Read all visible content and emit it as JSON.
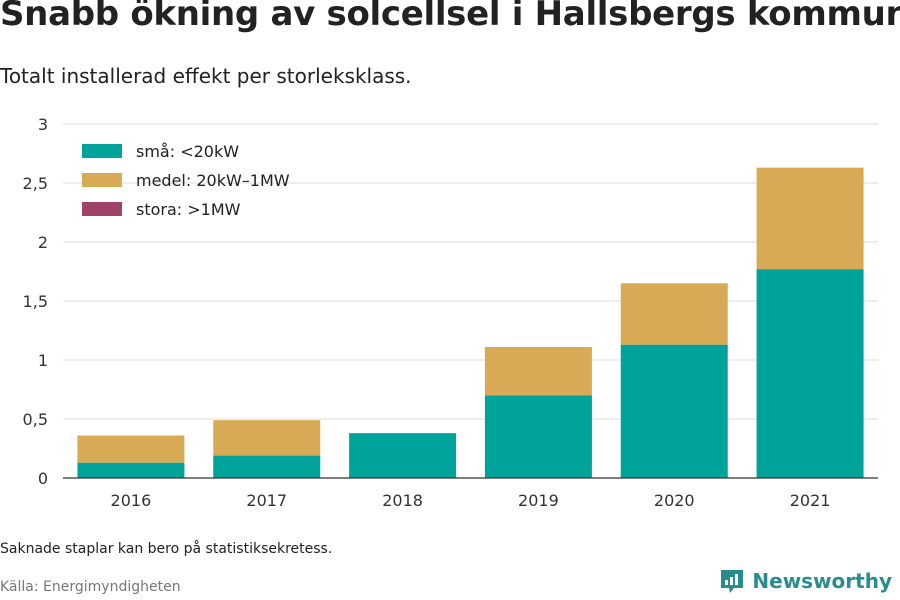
{
  "title": "Snabb ökning av solcellsel i Hallsbergs kommun",
  "subtitle": "Totalt installerad effekt per storleksklass.",
  "note": "Saknade staplar kan bero på statistiksekretess.",
  "source": "Källa: Energimyndigheten",
  "brand": "Newsworthy",
  "colors": {
    "sma": "#00a39a",
    "medel": "#d9aa56",
    "stora": "#a0426a",
    "grid": "#dddddd",
    "brand": "#2a8c8c"
  },
  "chart_data": {
    "type": "bar",
    "stacked": true,
    "categories": [
      "2016",
      "2017",
      "2018",
      "2019",
      "2020",
      "2021"
    ],
    "series": [
      {
        "name": "små: <20kW",
        "values": [
          0.13,
          0.19,
          0.38,
          0.7,
          1.13,
          1.77
        ],
        "color": "#00a39a"
      },
      {
        "name": "medel: 20kW–1MW",
        "values": [
          0.23,
          0.3,
          0,
          0.41,
          0.52,
          0.86
        ],
        "color": "#d9aa56"
      },
      {
        "name": "stora: >1MW",
        "values": [
          0,
          0,
          0,
          0,
          0,
          0
        ],
        "color": "#a0426a"
      }
    ],
    "yticks": [
      "0",
      "0,5",
      "1",
      "1,5",
      "2",
      "2,5",
      "3"
    ],
    "ytick_values": [
      0,
      0.5,
      1,
      1.5,
      2,
      2.5,
      3
    ],
    "ylim": [
      0,
      3
    ],
    "grid": true,
    "legend": "top-left"
  }
}
